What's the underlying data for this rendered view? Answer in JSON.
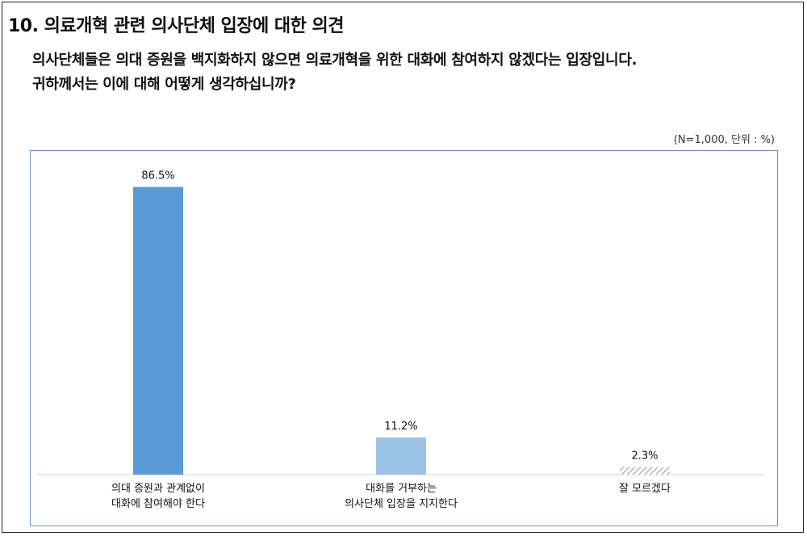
{
  "header": {
    "title": "10. 의료개혁 관련 의사단체 입장에 대한 의견",
    "question_line1": "의사단체들은 의대 증원을 백지화하지 않으면 의료개혁을 위한 대화에 참여하지 않겠다는 입장입니다.",
    "question_line2": "귀하께서는 이에 대해 어떻게 생각하십니까?",
    "unit_note": "(N=1,000, 단위 : %)"
  },
  "colors": {
    "bar1": "#5b9bd5",
    "bar2": "#9dc3e6",
    "bar3_hatch": "#bfbfbf",
    "frame": "#6f93c8"
  },
  "chart_data": {
    "type": "bar",
    "categories": [
      [
        "의대 증원과 관계없이",
        "대화에 참여해야 한다"
      ],
      [
        "대화를 거부하는",
        "의사단체 입장을 지지한다"
      ],
      [
        "잘 모르겠다"
      ]
    ],
    "values": [
      86.5,
      11.2,
      2.3
    ],
    "value_labels": [
      "86.5%",
      "11.2%",
      "2.3%"
    ],
    "ylim": [
      0,
      100
    ],
    "grid": false,
    "legend": "none"
  }
}
